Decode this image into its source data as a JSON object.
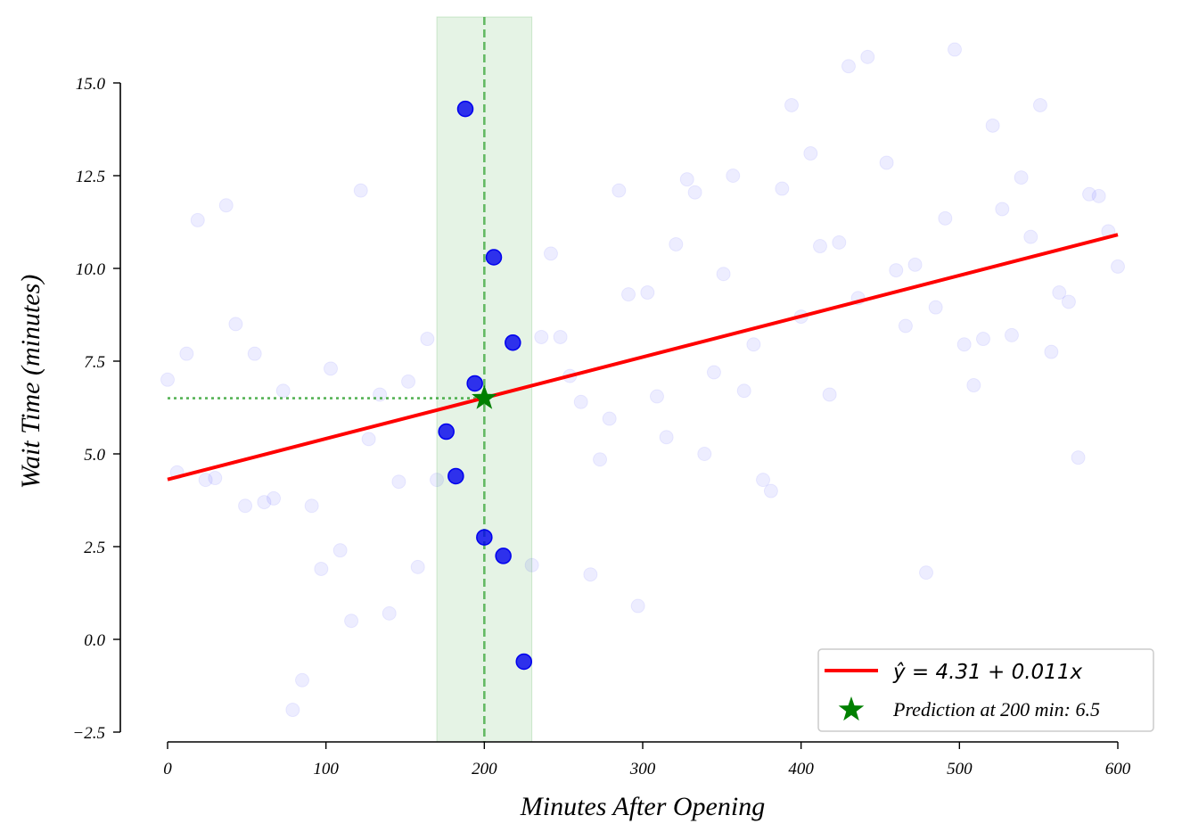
{
  "chart_data": {
    "type": "scatter",
    "title": "",
    "xlabel": "Minutes After Opening",
    "ylabel": "Wait Time (minutes)",
    "xlim": [
      0,
      600
    ],
    "ylim": [
      -2.5,
      15.0
    ],
    "xticks": [
      "0",
      "100",
      "200",
      "300",
      "400",
      "500",
      "600"
    ],
    "xtick_values": [
      0,
      100,
      200,
      300,
      400,
      500,
      600
    ],
    "yticks": [
      "−2.5",
      "0.0",
      "2.5",
      "5.0",
      "7.5",
      "10.0",
      "12.5",
      "15.0"
    ],
    "ytick_values": [
      -2.5,
      0,
      2.5,
      5,
      7.5,
      10,
      12.5,
      15
    ],
    "grid": false,
    "legend_position": "bottom-right",
    "background_points": {
      "color": "#e8e8ff",
      "x": [
        0,
        6,
        12,
        19,
        24,
        30,
        37,
        43,
        49,
        55,
        61,
        67,
        73,
        79,
        85,
        91,
        97,
        103,
        109,
        116,
        122,
        127,
        134,
        140,
        146,
        152,
        158,
        164,
        170,
        230,
        236,
        242,
        248,
        254,
        261,
        267,
        273,
        279,
        285,
        291,
        297,
        303,
        309,
        315,
        321,
        328,
        333,
        339,
        345,
        351,
        357,
        364,
        370,
        376,
        381,
        388,
        394,
        400,
        406,
        412,
        418,
        424,
        430,
        436,
        442,
        454,
        460,
        466,
        472,
        479,
        485,
        491,
        497,
        503,
        509,
        515,
        521,
        527,
        533,
        539,
        545,
        551,
        558,
        563,
        569,
        575,
        582,
        588,
        594,
        600
      ],
      "y": [
        7.0,
        4.5,
        7.7,
        11.3,
        4.3,
        4.35,
        11.7,
        8.5,
        3.6,
        7.7,
        3.7,
        3.8,
        6.7,
        -1.9,
        -1.1,
        3.6,
        1.9,
        7.3,
        2.4,
        0.5,
        12.1,
        5.4,
        6.6,
        0.7,
        4.25,
        6.95,
        1.95,
        8.1,
        4.3,
        2.0,
        8.15,
        10.4,
        8.15,
        7.1,
        6.4,
        1.75,
        4.85,
        5.95,
        12.1,
        9.3,
        0.9,
        9.35,
        6.55,
        5.45,
        10.65,
        12.4,
        12.05,
        5.0,
        7.2,
        9.85,
        12.5,
        6.7,
        7.95,
        4.3,
        4.0,
        12.15,
        14.4,
        8.7,
        13.1,
        10.6,
        6.6,
        10.7,
        15.45,
        9.2,
        15.7,
        12.85,
        9.95,
        8.45,
        10.1,
        1.8,
        8.95,
        11.35,
        15.9,
        7.95,
        6.85,
        8.1,
        13.85,
        11.6,
        8.2,
        12.45,
        10.85,
        14.4,
        7.75,
        9.35,
        9.1,
        4.9,
        12.0,
        11.95,
        11.0,
        10.05
      ]
    },
    "window_points": {
      "color": "#0000ee",
      "x": [
        188,
        206,
        218,
        194,
        176,
        182,
        200,
        212,
        225
      ],
      "y": [
        14.3,
        10.3,
        8.0,
        6.9,
        5.6,
        4.4,
        2.75,
        2.25,
        -0.6
      ]
    },
    "window": {
      "center": 200,
      "range": [
        170,
        230
      ],
      "color": "#2ca02c"
    },
    "regression": {
      "intercept": 4.31,
      "slope": 0.011,
      "color": "#ff0000",
      "label": "ŷ = 4.31 + 0.011x"
    },
    "prediction": {
      "x": 200,
      "y": 6.5,
      "color": "#008000",
      "label": "Prediction at 200 min: 6.5"
    }
  }
}
